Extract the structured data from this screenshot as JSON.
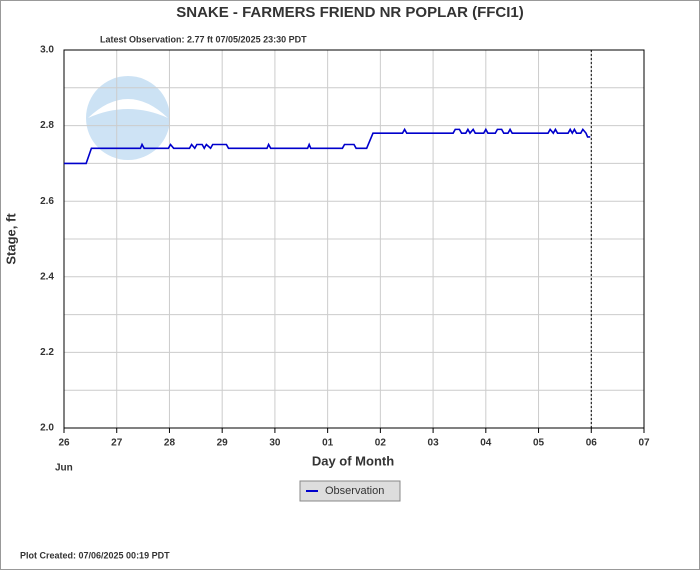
{
  "chart_data": {
    "type": "line",
    "title": "SNAKE - FARMERS FRIEND NR POPLAR  (FFCI1)",
    "subtitle": "Latest Observation: 2.77 ft 07/05/2025 23:30 PDT",
    "xlabel": "Day of Month",
    "ylabel": "Stage, ft",
    "footer": "Plot Created: 07/06/2025 00:19 PDT",
    "x_sublabel": "Jun",
    "xlim": [
      0,
      11
    ],
    "xticks": [
      {
        "value": 0,
        "label": "26"
      },
      {
        "value": 1,
        "label": "27"
      },
      {
        "value": 2,
        "label": "28"
      },
      {
        "value": 3,
        "label": "29"
      },
      {
        "value": 4,
        "label": "30"
      },
      {
        "value": 5,
        "label": "01"
      },
      {
        "value": 6,
        "label": "02"
      },
      {
        "value": 7,
        "label": "03"
      },
      {
        "value": 8,
        "label": "04"
      },
      {
        "value": 9,
        "label": "05"
      },
      {
        "value": 10,
        "label": "06"
      },
      {
        "value": 11,
        "label": "07"
      }
    ],
    "ylim": [
      2.0,
      3.0
    ],
    "yticks": [
      {
        "value": 2,
        "label": "2.0"
      },
      2.2,
      2.4,
      2.6,
      2.8,
      {
        "value": 3,
        "label": "3.0"
      }
    ],
    "minor_yticks": [
      2.1,
      2.3,
      2.5,
      2.7,
      2.9
    ],
    "grid": true,
    "now_line_x": 10,
    "legend": "bottom",
    "series": [
      {
        "name": "Observation",
        "color": "#0000cc",
        "x": [
          0,
          0.42,
          0.52,
          1.45,
          1.48,
          1.52,
          1.98,
          2.02,
          2.08,
          2.38,
          2.42,
          2.48,
          2.52,
          2.62,
          2.66,
          2.7,
          2.78,
          2.82,
          3.08,
          3.12,
          3.85,
          3.88,
          3.92,
          4.62,
          4.65,
          4.68,
          5.28,
          5.32,
          5.5,
          5.54,
          5.74,
          5.86,
          6.42,
          6.46,
          6.5,
          7.38,
          7.42,
          7.5,
          7.54,
          7.62,
          7.66,
          7.7,
          7.76,
          7.8,
          7.96,
          8.0,
          8.04,
          8.18,
          8.22,
          8.3,
          8.34,
          8.42,
          8.46,
          8.5,
          9.18,
          9.22,
          9.28,
          9.32,
          9.36,
          9.56,
          9.6,
          9.64,
          9.68,
          9.72,
          9.8,
          9.84,
          9.9,
          9.93,
          9.98
        ],
        "values": [
          2.7,
          2.7,
          2.74,
          2.74,
          2.75,
          2.74,
          2.74,
          2.75,
          2.74,
          2.74,
          2.75,
          2.74,
          2.75,
          2.75,
          2.74,
          2.75,
          2.74,
          2.75,
          2.75,
          2.74,
          2.74,
          2.75,
          2.74,
          2.74,
          2.75,
          2.74,
          2.74,
          2.75,
          2.75,
          2.74,
          2.74,
          2.78,
          2.78,
          2.79,
          2.78,
          2.78,
          2.79,
          2.79,
          2.78,
          2.78,
          2.79,
          2.78,
          2.79,
          2.78,
          2.78,
          2.79,
          2.78,
          2.78,
          2.79,
          2.79,
          2.78,
          2.78,
          2.79,
          2.78,
          2.78,
          2.79,
          2.78,
          2.79,
          2.78,
          2.78,
          2.79,
          2.78,
          2.79,
          2.78,
          2.78,
          2.79,
          2.78,
          2.77,
          2.77
        ]
      }
    ]
  }
}
